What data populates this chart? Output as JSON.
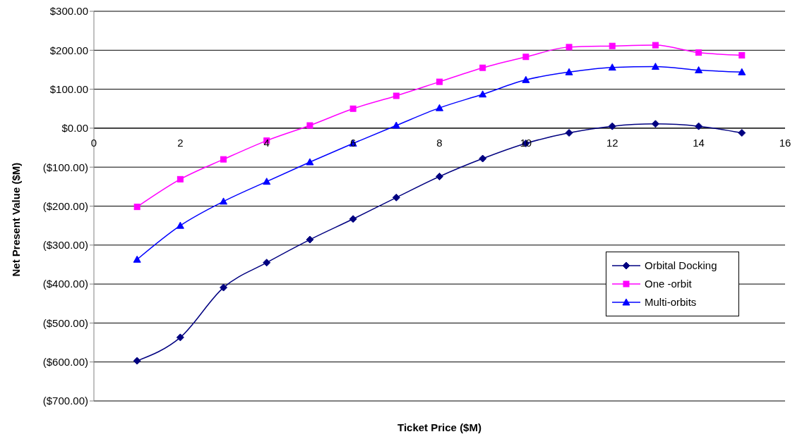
{
  "chart_data": {
    "type": "line",
    "xlabel": "Ticket Price ($M)",
    "ylabel": "Net Present Value ($M)",
    "x": [
      1,
      2,
      3,
      4,
      5,
      6,
      7,
      8,
      9,
      10,
      11,
      12,
      13,
      14,
      15
    ],
    "xlim": [
      0,
      16
    ],
    "xticks": [
      0,
      2,
      4,
      6,
      8,
      10,
      12,
      14,
      16
    ],
    "ylim": [
      -700,
      300
    ],
    "yticks": [
      {
        "value": -700,
        "label": "($700.00)"
      },
      {
        "value": -600,
        "label": "($600.00)"
      },
      {
        "value": -500,
        "label": "($500.00)"
      },
      {
        "value": -400,
        "label": "($400.00)"
      },
      {
        "value": -300,
        "label": "($300.00)"
      },
      {
        "value": -200,
        "label": "($200.00)"
      },
      {
        "value": -100,
        "label": "($100.00)"
      },
      {
        "value": 0,
        "label": "$0.00"
      },
      {
        "value": 100,
        "label": "$100.00"
      },
      {
        "value": 200,
        "label": "$200.00"
      },
      {
        "value": 300,
        "label": "$300.00"
      }
    ],
    "grid": "y",
    "legend": "right",
    "series": [
      {
        "name": "Orbital Docking",
        "color": "#000080",
        "marker": "diamond",
        "values": [
          -597,
          -537,
          -409,
          -345,
          -286,
          -233,
          -178,
          -124,
          -78,
          -39,
          -12,
          5,
          11,
          5,
          -12
        ]
      },
      {
        "name": "One -orbit",
        "color": "#ff00ff",
        "marker": "square",
        "values": [
          -202,
          -131,
          -80,
          -32,
          7,
          50,
          83,
          119,
          155,
          183,
          208,
          211,
          213,
          194,
          187
        ]
      },
      {
        "name": "Multi-orbits",
        "color": "#0000ff",
        "marker": "triangle",
        "values": [
          -337,
          -250,
          -188,
          -137,
          -87,
          -39,
          7,
          52,
          87,
          124,
          144,
          156,
          158,
          149,
          144
        ]
      }
    ]
  }
}
